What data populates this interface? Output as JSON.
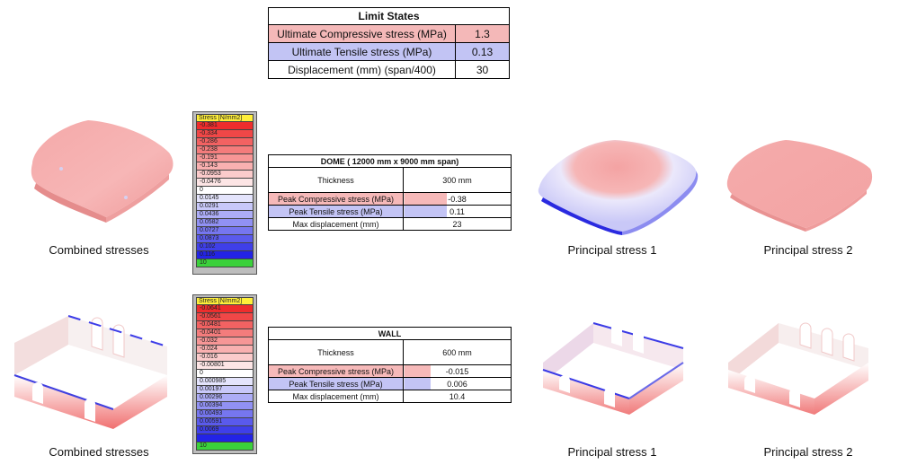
{
  "limit_states": {
    "title": "Limit States",
    "rows": [
      {
        "label": "Ultimate Compressive stress (MPa)",
        "value": "1.3",
        "color": "#f4b8b8"
      },
      {
        "label": "Ultimate Tensile stress (MPa)",
        "value": "0.13",
        "color": "#c2c4f4"
      },
      {
        "label": "Displacement (mm) (span/400)",
        "value": "30",
        "color": "#ffffff"
      }
    ]
  },
  "dome": {
    "title": "DOME ( 12000 mm x 9000 mm span)",
    "thickness_label": "Thickness",
    "thickness_value": "300 mm",
    "rows": [
      {
        "label": "Peak Compressive stress (MPa)",
        "value": "-0.38"
      },
      {
        "label": "Peak Tensile stress (MPa)",
        "value": "0.11"
      },
      {
        "label": "Max displacement (mm)",
        "value": "23"
      }
    ],
    "legend": {
      "header": "Stress [N/mm2]",
      "values": [
        "-0.381",
        "-0.334",
        "-0.286",
        "-0.238",
        "-0.191",
        "-0.143",
        "-0.0953",
        "-0.0476",
        "0",
        "0.0145",
        "0.0291",
        "0.0436",
        "0.0582",
        "0.0727",
        "0.0873",
        "0.102",
        "0.116",
        "10"
      ]
    },
    "captions": {
      "combined": "Combined stresses",
      "p1": "Principal stress 1",
      "p2": "Principal stress 2"
    }
  },
  "wall": {
    "title": "WALL",
    "thickness_label": "Thickness",
    "thickness_value": "600 mm",
    "rows": [
      {
        "label": "Peak Compressive stress (MPa)",
        "value": "-0.015"
      },
      {
        "label": "Peak Tensile stress (MPa)",
        "value": "0.006"
      },
      {
        "label": "Max displacement (mm)",
        "value": "10.4"
      }
    ],
    "legend": {
      "header": "Stress [N/mm2]",
      "values": [
        "-0.0641",
        "-0.0561",
        "-0.0481",
        "-0.0401",
        "-0.032",
        "-0.024",
        "-0.016",
        "-0.00801",
        "0",
        "0.000985",
        "0.00197",
        "0.00296",
        "0.00394",
        "0.00493",
        "0.00591",
        "0.0069",
        "",
        "10"
      ]
    },
    "captions": {
      "combined": "Combined stresses",
      "p1": "Principal stress 1",
      "p2": "Principal stress 2"
    }
  },
  "colors": {
    "compressive": "#f6b9b9",
    "tensile": "#c3c4f5",
    "legend_header": "#ffef3a",
    "legend_top": "#ee2d2d",
    "legend_mid": "#ffffff",
    "legend_bottom": "#2323e6",
    "legend_last": "#3bd13b"
  }
}
